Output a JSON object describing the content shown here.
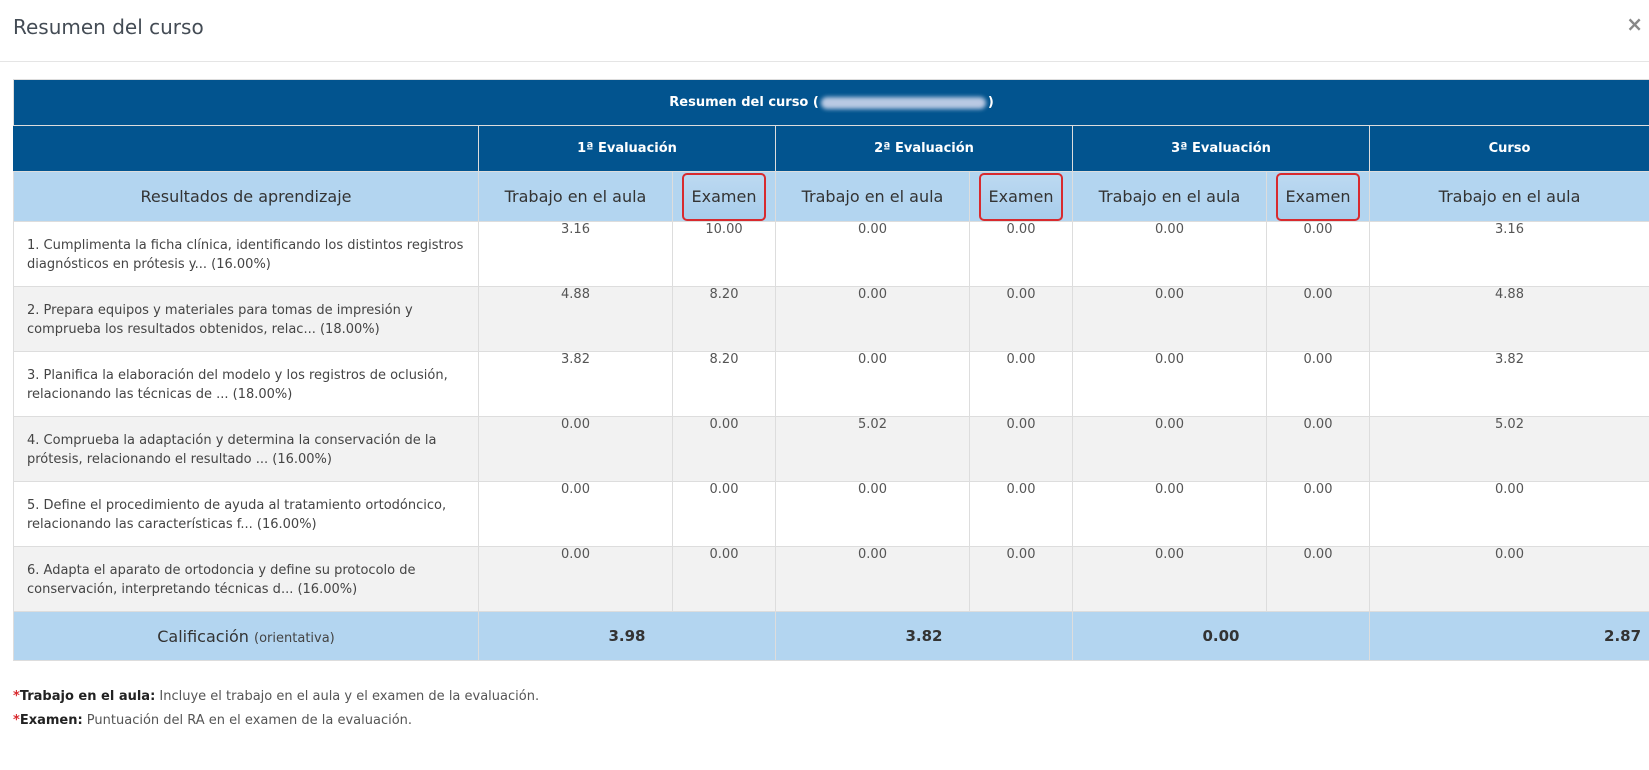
{
  "modal": {
    "title": "Resumen del curso",
    "close_label": "×"
  },
  "table": {
    "title_prefix": "Resumen del curso (",
    "title_suffix": ")",
    "evaluations": [
      "1ª Evaluación",
      "2ª Evaluación",
      "3ª Evaluación",
      "Curso"
    ],
    "col_ra": "Resultados de aprendizaje",
    "col_work": "Trabajo en el aula",
    "col_exam": "Examen",
    "rows": [
      {
        "ra": "1. Cumplimenta la ficha clínica, identificando los distintos registros diagnósticos en prótesis y... (16.00%)",
        "values": [
          "3.16",
          "10.00",
          "0.00",
          "0.00",
          "0.00",
          "0.00",
          "3.16"
        ]
      },
      {
        "ra": "2. Prepara equipos y materiales para tomas de impresión y comprueba los resultados obtenidos, relac... (18.00%)",
        "values": [
          "4.88",
          "8.20",
          "0.00",
          "0.00",
          "0.00",
          "0.00",
          "4.88"
        ]
      },
      {
        "ra": "3. Planifica la elaboración del modelo y los registros de oclusión, relacionando las técnicas de ... (18.00%)",
        "values": [
          "3.82",
          "8.20",
          "0.00",
          "0.00",
          "0.00",
          "0.00",
          "3.82"
        ]
      },
      {
        "ra": "4. Comprueba la adaptación y determina la conservación de la prótesis, relacionando el resultado ... (16.00%)",
        "values": [
          "0.00",
          "0.00",
          "5.02",
          "0.00",
          "0.00",
          "0.00",
          "5.02"
        ]
      },
      {
        "ra": "5. Define el procedimiento de ayuda al tratamiento ortodóncico, relacionando las características f... (16.00%)",
        "values": [
          "0.00",
          "0.00",
          "0.00",
          "0.00",
          "0.00",
          "0.00",
          "0.00"
        ]
      },
      {
        "ra": "6. Adapta el aparato de ortodoncia y define su protocolo de conservación, interpretando técnicas d... (16.00%)",
        "values": [
          "0.00",
          "0.00",
          "0.00",
          "0.00",
          "0.00",
          "0.00",
          "0.00"
        ]
      }
    ],
    "grade_label": "Calificación",
    "grade_note": "(orientativa)",
    "grades": [
      "3.98",
      "3.82",
      "0.00",
      "2.87"
    ]
  },
  "notes": {
    "work_label": "Trabajo en el aula:",
    "work_text": " Incluye el trabajo en el aula y el examen de la evaluación.",
    "exam_label": "Examen:",
    "exam_text": " Puntuación del RA en el examen de la evaluación."
  },
  "colors": {
    "header_blue": "#02548f",
    "subheader_light_blue": "#b3d5f0",
    "highlight_red": "#d82a2e"
  }
}
